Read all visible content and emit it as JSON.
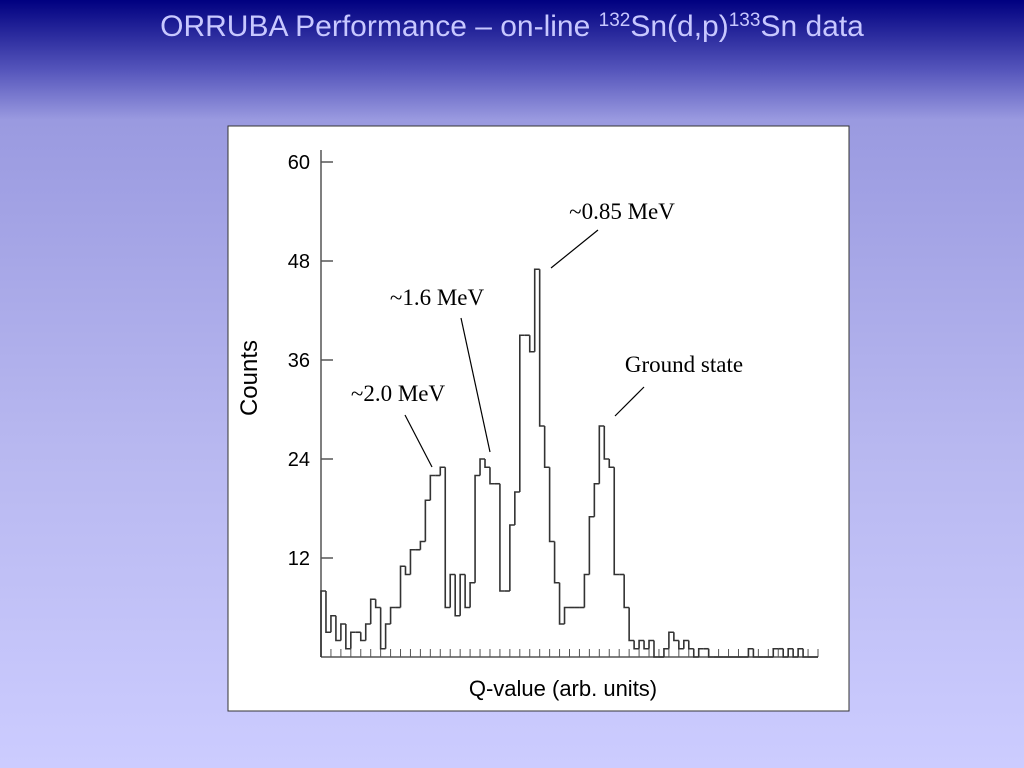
{
  "slide_title": [
    "ORRUBA Performance – on-line ",
    "132",
    "Sn(d,p)",
    "133",
    "Sn data"
  ],
  "chart_data": {
    "type": "histogram",
    "x_label": "Q-value (arb. units)",
    "y_label": "Counts",
    "categories": [
      null,
      null,
      null,
      null,
      null,
      null,
      null,
      null,
      null,
      null,
      null,
      null,
      null,
      null,
      null,
      null,
      null,
      null,
      null,
      null,
      null,
      null,
      null,
      null,
      null,
      null,
      null,
      null,
      null,
      null,
      null,
      null,
      null,
      null,
      null,
      null,
      null,
      null,
      null,
      null,
      null,
      null,
      null,
      null,
      null,
      null,
      null,
      null,
      null,
      null,
      null,
      null,
      null,
      null,
      null,
      null,
      null,
      null,
      null,
      null,
      null,
      null,
      null,
      null,
      null,
      null,
      null,
      null,
      null,
      null,
      null,
      null,
      null,
      null,
      null,
      null,
      null,
      null,
      null,
      null,
      null,
      null,
      null,
      null,
      null,
      null,
      null,
      null,
      null,
      null,
      null,
      null,
      null,
      null,
      null,
      null,
      null,
      null,
      null,
      null
    ],
    "values": [
      8,
      3,
      5,
      2,
      4,
      1,
      3,
      3,
      2,
      4,
      7,
      6,
      1,
      4,
      6,
      6,
      11,
      10,
      13,
      13,
      14,
      19,
      22,
      22,
      23,
      6,
      10,
      5,
      10,
      6,
      9,
      22,
      24,
      23,
      21,
      21,
      8,
      8,
      16,
      20,
      39,
      39,
      37,
      47,
      28,
      23,
      14,
      9,
      4,
      6,
      6,
      6,
      6,
      10,
      17,
      21,
      28,
      24,
      23,
      10,
      10,
      6,
      2,
      1,
      2,
      1,
      2,
      0,
      0,
      1,
      3,
      2,
      1,
      2,
      1,
      0,
      1,
      1,
      0,
      0,
      0,
      0,
      0,
      0,
      0,
      0,
      1,
      0,
      0,
      0,
      0,
      1,
      1,
      0,
      1,
      0,
      1,
      0,
      0,
      0
    ],
    "color": "#333333",
    "ylim": [
      0,
      60
    ],
    "yticks": [
      12,
      24,
      36,
      48,
      60
    ],
    "annotations": [
      "~2.0 MeV",
      "~1.6 MeV",
      "~0.85 MeV",
      "Ground state"
    ]
  }
}
